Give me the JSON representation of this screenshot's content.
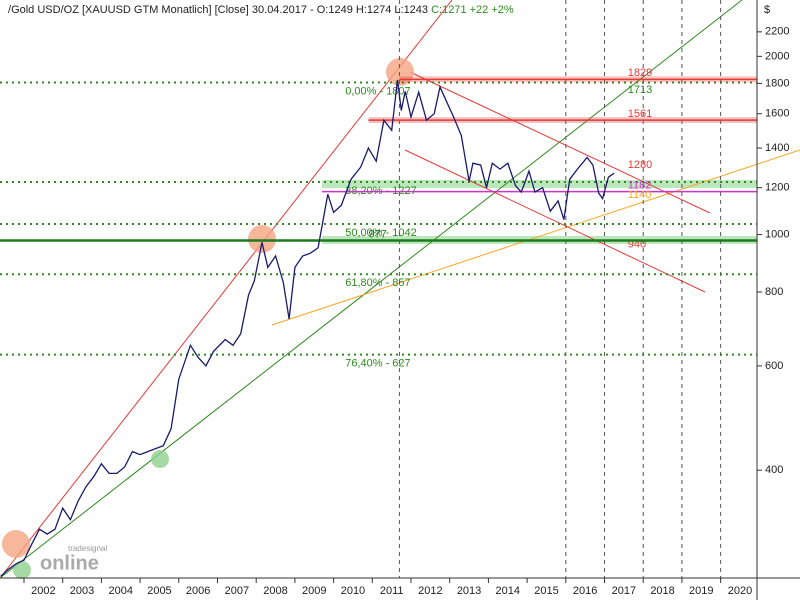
{
  "chart_data": {
    "type": "line",
    "title": "Gold USD/OZ [XAUUSD GTM  Monatlich] [Close] 30.04.2017 - O:1249 H:1274 L:1243",
    "title_change": "C:1271 +22 +2%",
    "y_unit": "$",
    "watermark": "tradesignal",
    "watermark_sub": "online",
    "log_y": true,
    "xlim": [
      2001.38,
      2020.94
    ],
    "ylim": [
      263,
      2490
    ],
    "xticks": [
      2002,
      2003,
      2004,
      2005,
      2006,
      2007,
      2008,
      2009,
      2010,
      2011,
      2012,
      2013,
      2014,
      2015,
      2016,
      2017,
      2018,
      2019,
      2020
    ],
    "yticks": [
      400,
      600,
      800,
      1000,
      1200,
      1400,
      1600,
      1800,
      2000,
      2200
    ],
    "vlines": [
      2011.7,
      2016,
      2017,
      2018,
      2019,
      2020
    ],
    "series": [
      {
        "name": "Gold USD/OZ",
        "color": "#1a1a6e",
        "x": [
          2001.4,
          2001.6,
          2001.8,
          2002.0,
          2002.2,
          2002.4,
          2002.6,
          2002.8,
          2003.0,
          2003.2,
          2003.4,
          2003.6,
          2003.8,
          2004.0,
          2004.2,
          2004.4,
          2004.6,
          2004.8,
          2005.0,
          2005.2,
          2005.4,
          2005.6,
          2005.8,
          2006.0,
          2006.3,
          2006.5,
          2006.7,
          2006.9,
          2007.2,
          2007.4,
          2007.6,
          2007.8,
          2007.95,
          2008.15,
          2008.3,
          2008.5,
          2008.7,
          2008.85,
          2009.0,
          2009.2,
          2009.4,
          2009.6,
          2009.85,
          2010.0,
          2010.2,
          2010.45,
          2010.7,
          2010.9,
          2011.1,
          2011.3,
          2011.5,
          2011.65,
          2011.75,
          2011.85,
          2012.0,
          2012.2,
          2012.4,
          2012.6,
          2012.75,
          2012.95,
          2013.1,
          2013.3,
          2013.5,
          2013.6,
          2013.8,
          2013.95,
          2014.1,
          2014.3,
          2014.5,
          2014.7,
          2014.85,
          2015.05,
          2015.2,
          2015.4,
          2015.6,
          2015.8,
          2015.95,
          2016.1,
          2016.3,
          2016.55,
          2016.7,
          2016.85,
          2016.95,
          2017.1,
          2017.25
        ],
        "values": [
          265,
          272,
          278,
          282,
          300,
          318,
          312,
          318,
          345,
          330,
          355,
          375,
          390,
          410,
          395,
          395,
          405,
          430,
          425,
          430,
          435,
          440,
          470,
          570,
          650,
          620,
          600,
          635,
          665,
          650,
          680,
          790,
          835,
          970,
          880,
          920,
          830,
          720,
          880,
          920,
          930,
          950,
          1170,
          1090,
          1120,
          1240,
          1300,
          1400,
          1330,
          1560,
          1500,
          1825,
          1620,
          1745,
          1580,
          1740,
          1560,
          1600,
          1775,
          1660,
          1580,
          1470,
          1230,
          1320,
          1310,
          1200,
          1320,
          1290,
          1320,
          1210,
          1180,
          1280,
          1180,
          1200,
          1095,
          1140,
          1060,
          1240,
          1290,
          1350,
          1310,
          1175,
          1150,
          1250,
          1270
        ]
      }
    ],
    "fib_levels": [
      {
        "value": 1807,
        "label": "0,00% - 1807"
      },
      {
        "value": 1227,
        "label": "38,20% - 1227"
      },
      {
        "value": 1042,
        "label": "50,00% - 1042"
      },
      {
        "value": 857,
        "label": "61,80% - 857"
      },
      {
        "value": 627,
        "label": "76,40% - 627"
      }
    ],
    "fib_color": "#2e8b1e",
    "levels": [
      {
        "value": 1829,
        "color": "#e53935",
        "kind": "band",
        "from": 2011.7
      },
      {
        "value": 1713,
        "color": "#2e8b1e",
        "kind": "label"
      },
      {
        "value": 1561,
        "color": "#e53935",
        "kind": "band",
        "from": 2010.9
      },
      {
        "value": 1280,
        "color": "#e53935",
        "kind": "label"
      },
      {
        "value": 1182,
        "color": "#cc33cc",
        "kind": "line",
        "from": 2009.7
      },
      {
        "value": 1140,
        "color": "#f5a623",
        "kind": "label"
      },
      {
        "value": 940,
        "color": "#e53935",
        "kind": "label"
      },
      {
        "value": 977,
        "color": "#1e7a1e",
        "kind": "thick",
        "from": 2001.38
      }
    ]
  }
}
